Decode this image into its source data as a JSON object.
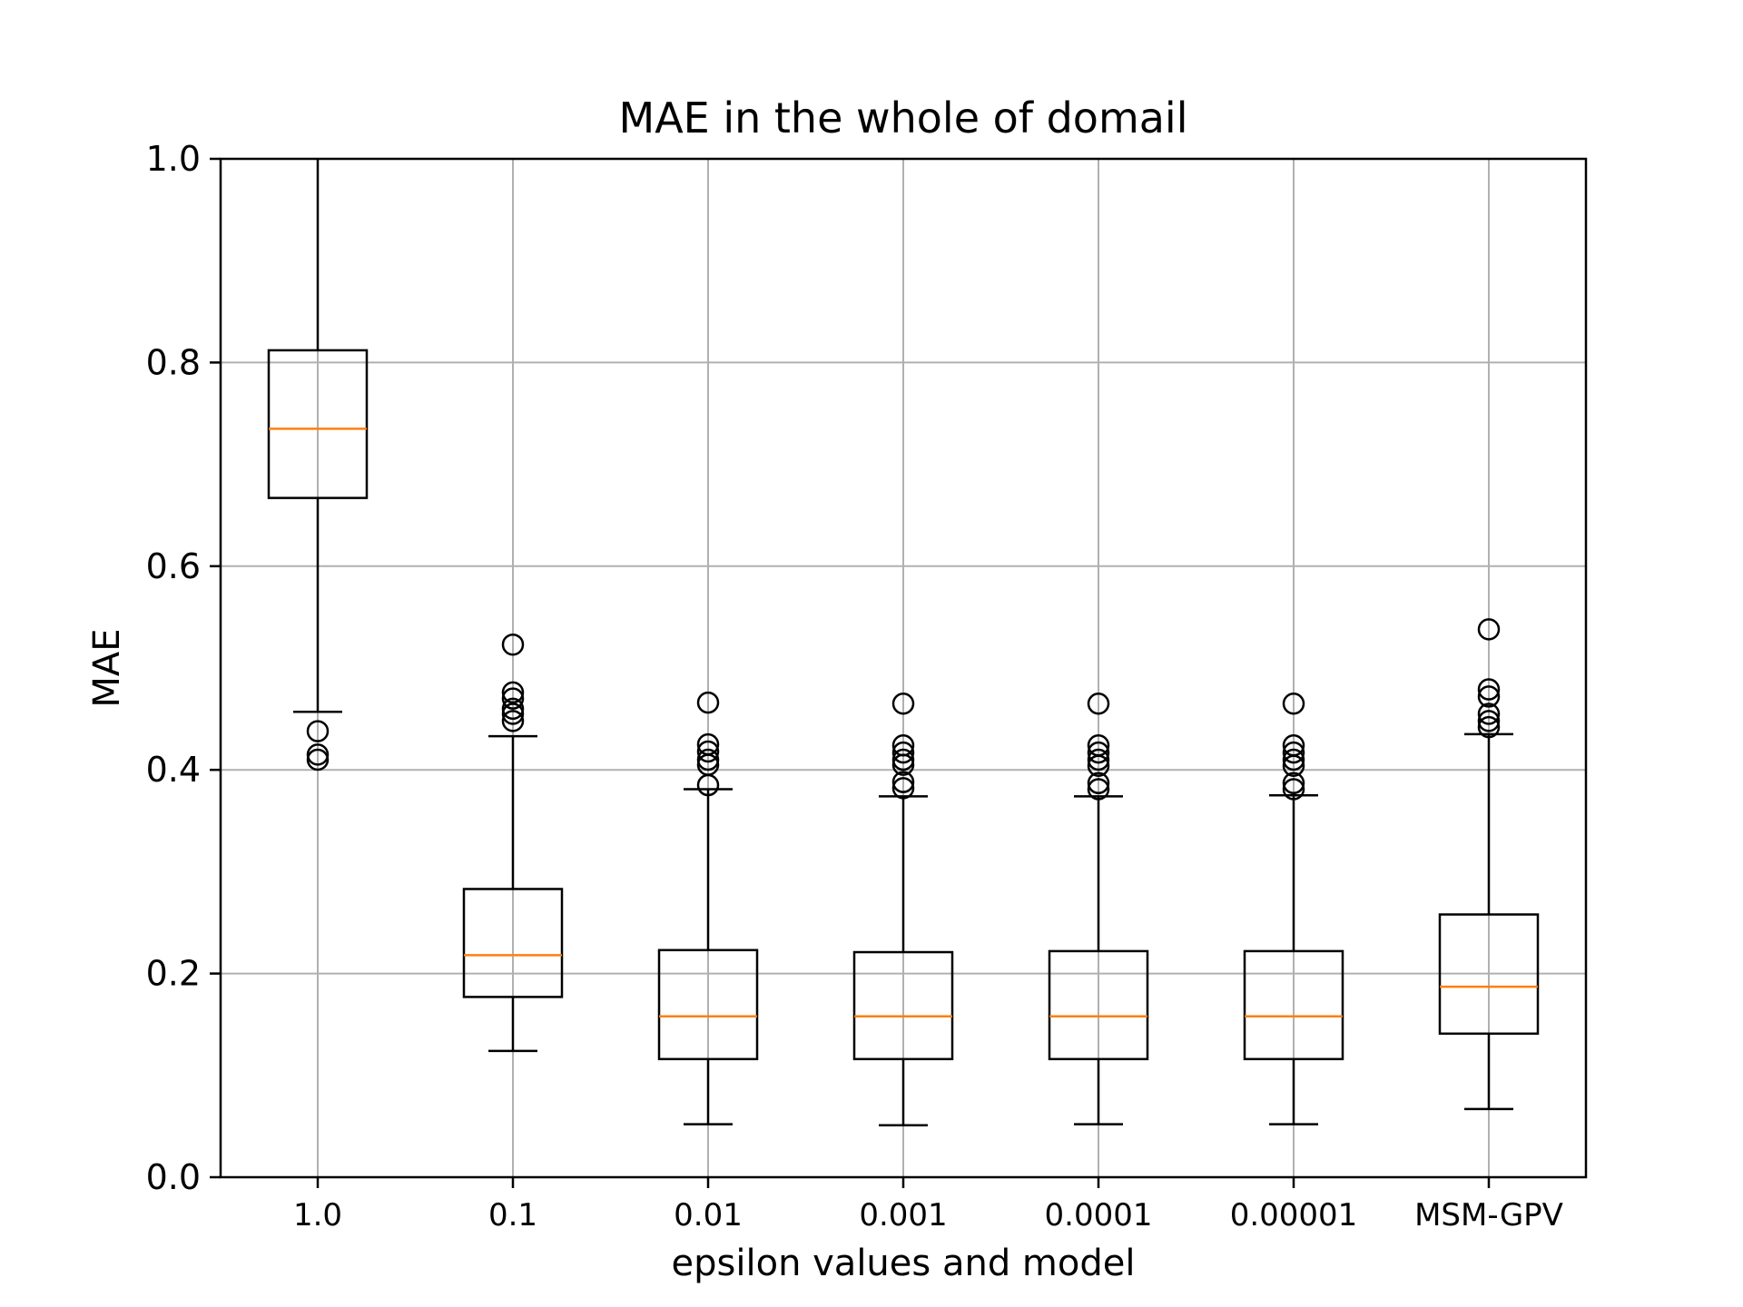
{
  "chart_data": {
    "type": "box",
    "title": "MAE in the whole of domail",
    "xlabel": "epsilon values and model",
    "ylabel": "MAE",
    "ylim": [
      0.0,
      1.0
    ],
    "yticks": [
      "0.0",
      "0.2",
      "0.4",
      "0.6",
      "0.8",
      "1.0"
    ],
    "grid": true,
    "categories": [
      "1.0",
      "0.1",
      "0.01",
      "0.001",
      "0.0001",
      "0.00001",
      "MSM-GPV"
    ],
    "boxes": [
      {
        "label": "1.0",
        "whisker_low": 0.457,
        "q1": 0.667,
        "median": 0.735,
        "q3": 0.812,
        "whisker_high": 1.0,
        "outliers": [
          0.438,
          0.415,
          0.41
        ]
      },
      {
        "label": "0.1",
        "whisker_low": 0.124,
        "q1": 0.177,
        "median": 0.218,
        "q3": 0.283,
        "whisker_high": 0.433,
        "outliers": [
          0.523,
          0.476,
          0.47,
          0.46,
          0.455,
          0.448
        ]
      },
      {
        "label": "0.01",
        "whisker_low": 0.052,
        "q1": 0.116,
        "median": 0.158,
        "q3": 0.223,
        "whisker_high": 0.381,
        "outliers": [
          0.466,
          0.425,
          0.418,
          0.41,
          0.405,
          0.385
        ]
      },
      {
        "label": "0.001",
        "whisker_low": 0.051,
        "q1": 0.116,
        "median": 0.158,
        "q3": 0.221,
        "whisker_high": 0.374,
        "outliers": [
          0.465,
          0.424,
          0.417,
          0.41,
          0.405,
          0.388,
          0.382
        ]
      },
      {
        "label": "0.0001",
        "whisker_low": 0.052,
        "q1": 0.116,
        "median": 0.158,
        "q3": 0.222,
        "whisker_high": 0.374,
        "outliers": [
          0.465,
          0.424,
          0.417,
          0.41,
          0.404,
          0.387,
          0.381
        ]
      },
      {
        "label": "0.00001",
        "whisker_low": 0.052,
        "q1": 0.116,
        "median": 0.158,
        "q3": 0.222,
        "whisker_high": 0.375,
        "outliers": [
          0.465,
          0.424,
          0.417,
          0.41,
          0.404,
          0.387,
          0.381
        ]
      },
      {
        "label": "MSM-GPV",
        "whisker_low": 0.067,
        "q1": 0.141,
        "median": 0.187,
        "q3": 0.258,
        "whisker_high": 0.435,
        "outliers": [
          0.538,
          0.479,
          0.472,
          0.455,
          0.448,
          0.442
        ]
      }
    ],
    "colors": {
      "box": "#000000",
      "median": "#ff7f0e",
      "grid": "#b0b0b0"
    }
  }
}
